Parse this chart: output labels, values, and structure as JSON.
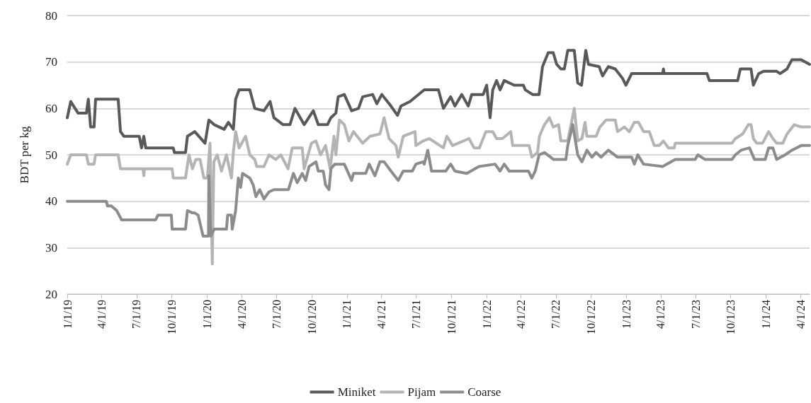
{
  "chart_data": {
    "type": "line",
    "ylabel": "BDT per kg",
    "xlim": [
      "2019-01-01",
      "2024-04-24"
    ],
    "xticks": [
      {
        "value": "2019-01-01",
        "label": "1/1/19"
      },
      {
        "value": "2019-04-01",
        "label": "4/1/19"
      },
      {
        "value": "2019-07-01",
        "label": "7/1/19"
      },
      {
        "value": "2019-10-01",
        "label": "10/1/19"
      },
      {
        "value": "2020-01-01",
        "label": "1/1/20"
      },
      {
        "value": "2020-04-01",
        "label": "4/1/20"
      },
      {
        "value": "2020-07-01",
        "label": "7/1/20"
      },
      {
        "value": "2020-10-01",
        "label": "10/1/20"
      },
      {
        "value": "2021-01-01",
        "label": "1/1/21"
      },
      {
        "value": "2021-04-01",
        "label": "4/1/21"
      },
      {
        "value": "2021-07-01",
        "label": "7/1/21"
      },
      {
        "value": "2021-10-01",
        "label": "10/1/21"
      },
      {
        "value": "2022-01-01",
        "label": "1/1/22"
      },
      {
        "value": "2022-04-01",
        "label": "4/1/22"
      },
      {
        "value": "2022-07-01",
        "label": "7/1/22"
      },
      {
        "value": "2022-10-01",
        "label": "10/1/22"
      },
      {
        "value": "2023-01-01",
        "label": "1/1/23"
      },
      {
        "value": "2023-04-01",
        "label": "4/1/23"
      },
      {
        "value": "2023-07-01",
        "label": "7/1/23"
      },
      {
        "value": "2023-10-01",
        "label": "10/1/23"
      },
      {
        "value": "2024-01-01",
        "label": "1/1/24"
      },
      {
        "value": "2024-04-01",
        "label": "4/1/24"
      }
    ],
    "ylim": [
      20,
      80
    ],
    "yticks": [
      20,
      30,
      40,
      50,
      60,
      70,
      80
    ],
    "grid": "y",
    "legend": "bottom",
    "marker": "none",
    "series": [
      {
        "name": "Miniket",
        "color": "#595959",
        "x": [
          "2019-01-01",
          "2019-01-10",
          "2019-01-29",
          "2019-02-20",
          "2019-02-25",
          "2019-03-03",
          "2019-03-12",
          "2019-03-16",
          "2019-05-14",
          "2019-05-20",
          "2019-05-29",
          "2019-07-08",
          "2019-07-14",
          "2019-07-20",
          "2019-07-25",
          "2019-10-05",
          "2019-10-08",
          "2019-11-06",
          "2019-11-11",
          "2019-11-30",
          "2019-12-27",
          "2020-01-06",
          "2020-01-20",
          "2020-02-15",
          "2020-02-26",
          "2020-03-10",
          "2020-03-16",
          "2020-03-25",
          "2020-04-22",
          "2020-05-05",
          "2020-05-29",
          "2020-06-14",
          "2020-06-24",
          "2020-07-18",
          "2020-08-05",
          "2020-08-18",
          "2020-09-11",
          "2020-10-05",
          "2020-10-18",
          "2020-11-11",
          "2020-11-20",
          "2020-12-03",
          "2020-12-09",
          "2020-12-25",
          "2021-01-13",
          "2021-01-31",
          "2021-02-11",
          "2021-03-09",
          "2021-03-20",
          "2021-04-02",
          "2021-04-26",
          "2021-05-13",
          "2021-05-22",
          "2021-06-15",
          "2021-07-22",
          "2021-08-28",
          "2021-09-10",
          "2021-09-29",
          "2021-10-10",
          "2021-10-28",
          "2021-11-14",
          "2021-11-23",
          "2021-12-23",
          "2022-01-01",
          "2022-01-10",
          "2022-01-17",
          "2022-01-27",
          "2022-02-05",
          "2022-02-16",
          "2022-03-14",
          "2022-04-07",
          "2022-04-12",
          "2022-05-01",
          "2022-05-18",
          "2022-05-27",
          "2022-06-11",
          "2022-06-24",
          "2022-07-03",
          "2022-07-14",
          "2022-07-23",
          "2022-08-01",
          "2022-08-18",
          "2022-08-27",
          "2022-09-06",
          "2022-09-17",
          "2022-09-24",
          "2022-10-22",
          "2022-10-31",
          "2022-11-15",
          "2022-12-03",
          "2022-12-22",
          "2022-12-31",
          "2023-01-15",
          "2023-04-06",
          "2023-04-08",
          "2023-04-10",
          "2023-07-31",
          "2023-08-06",
          "2023-10-19",
          "2023-10-26",
          "2023-11-23",
          "2023-11-29",
          "2023-12-13",
          "2023-12-26",
          "2024-01-29",
          "2024-02-07",
          "2024-02-25",
          "2024-03-09",
          "2024-04-02",
          "2024-04-24"
        ],
        "values": [
          58,
          61.5,
          59,
          59,
          62,
          56,
          56,
          62,
          62,
          55,
          54,
          54,
          51.5,
          54,
          51.5,
          51.5,
          50.5,
          50.5,
          54,
          55,
          52.5,
          57.5,
          56.5,
          55.5,
          57,
          55.5,
          62,
          64,
          64,
          60,
          59.5,
          61.5,
          58,
          56.5,
          56.5,
          60,
          56.5,
          59.5,
          56.5,
          56.5,
          58,
          59,
          62.5,
          63,
          59.5,
          60,
          62.5,
          63,
          61,
          63,
          60.5,
          58.5,
          60.5,
          61.5,
          64,
          64,
          60,
          62.5,
          60.5,
          63,
          60.5,
          63,
          63,
          65,
          58,
          64,
          66,
          64,
          66,
          65,
          65,
          64,
          63,
          63,
          69,
          72,
          72,
          69.5,
          68.5,
          68.5,
          72.5,
          72.5,
          65.5,
          65,
          72.5,
          69.5,
          69,
          67,
          69,
          68.5,
          66.5,
          65,
          67.5,
          67.5,
          68.5,
          67.5,
          67.5,
          66,
          66,
          68.5,
          68.5,
          65,
          67.5,
          68,
          68,
          67.5,
          68.5,
          70.5,
          70.5,
          69.5
        ]
      },
      {
        "name": "Pijam",
        "color": "#b4b4b4",
        "x": [
          "2019-01-01",
          "2019-01-10",
          "2019-02-20",
          "2019-02-25",
          "2019-03-12",
          "2019-03-16",
          "2019-05-14",
          "2019-05-20",
          "2019-07-18",
          "2019-07-20",
          "2019-07-22",
          "2019-10-02",
          "2019-10-05",
          "2019-11-06",
          "2019-11-15",
          "2019-11-24",
          "2019-12-03",
          "2019-12-14",
          "2019-12-24",
          "2020-01-02",
          "2020-01-09",
          "2020-01-15",
          "2020-01-19",
          "2020-01-28",
          "2020-02-08",
          "2020-02-21",
          "2020-03-05",
          "2020-03-10",
          "2020-03-16",
          "2020-03-25",
          "2020-04-11",
          "2020-04-22",
          "2020-05-05",
          "2020-05-10",
          "2020-05-29",
          "2020-06-11",
          "2020-06-29",
          "2020-07-12",
          "2020-07-31",
          "2020-08-11",
          "2020-09-06",
          "2020-09-11",
          "2020-09-30",
          "2020-10-12",
          "2020-10-24",
          "2020-11-06",
          "2020-11-18",
          "2020-11-28",
          "2020-12-03",
          "2020-12-12",
          "2020-12-25",
          "2021-01-06",
          "2021-01-18",
          "2021-02-11",
          "2021-03-02",
          "2021-03-28",
          "2021-04-08",
          "2021-04-21",
          "2021-05-09",
          "2021-05-15",
          "2021-05-28",
          "2021-06-28",
          "2021-06-30",
          "2021-07-19",
          "2021-08-04",
          "2021-09-10",
          "2021-09-19",
          "2021-10-04",
          "2021-11-16",
          "2021-11-29",
          "2021-12-13",
          "2021-12-30",
          "2022-01-17",
          "2022-01-27",
          "2022-02-11",
          "2022-03-05",
          "2022-03-10",
          "2022-04-22",
          "2022-04-29",
          "2022-05-14",
          "2022-05-19",
          "2022-06-01",
          "2022-06-14",
          "2022-06-24",
          "2022-07-08",
          "2022-07-14",
          "2022-08-01",
          "2022-08-18",
          "2022-08-27",
          "2022-09-07",
          "2022-09-15",
          "2022-09-20",
          "2022-10-14",
          "2022-10-24",
          "2022-11-09",
          "2022-12-03",
          "2022-12-09",
          "2022-12-27",
          "2023-01-09",
          "2023-01-22",
          "2023-02-02",
          "2023-02-15",
          "2023-03-02",
          "2023-03-15",
          "2023-03-28",
          "2023-04-08",
          "2023-04-21",
          "2023-05-06",
          "2023-05-09",
          "2023-10-04",
          "2023-10-13",
          "2023-11-01",
          "2023-11-16",
          "2023-11-23",
          "2023-11-29",
          "2023-12-08",
          "2023-12-23",
          "2024-01-08",
          "2024-01-19",
          "2024-01-29",
          "2024-02-14",
          "2024-02-25",
          "2024-03-15",
          "2024-04-02",
          "2024-04-24"
        ],
        "values": [
          48,
          50,
          50,
          48,
          48,
          50,
          50,
          47,
          47,
          45.5,
          47,
          47,
          45,
          45,
          50,
          47,
          49,
          49,
          45,
          45,
          52.5,
          26.5,
          48.5,
          50,
          46.5,
          50,
          45,
          50.5,
          55,
          51.5,
          54,
          50,
          49,
          47.5,
          47.5,
          50,
          49,
          50,
          47,
          51.5,
          51.5,
          47,
          52.5,
          53,
          50,
          52,
          47,
          54,
          50,
          57.5,
          56.5,
          53,
          55,
          52.5,
          54,
          54.5,
          58,
          53.5,
          52,
          49.5,
          54,
          55,
          52,
          53,
          53.5,
          51.5,
          54,
          52,
          53.5,
          51.5,
          51.5,
          55,
          55,
          53.5,
          53.5,
          55,
          52,
          52,
          49.5,
          50.5,
          54,
          56.5,
          58,
          56,
          56.5,
          53,
          53,
          60,
          53,
          53.5,
          57,
          54,
          54,
          56,
          57.5,
          57.5,
          55,
          56,
          55,
          57,
          57,
          55,
          55,
          52,
          52,
          53,
          51.5,
          51.5,
          52.5,
          52.5,
          53.5,
          54.5,
          56.5,
          56.5,
          53.5,
          52.5,
          52.5,
          55,
          53.5,
          52.5,
          52.5,
          54.5,
          56.5,
          56,
          56
        ]
      },
      {
        "name": "Coarse",
        "color": "#8c8c8c",
        "x": [
          "2019-01-01",
          "2019-04-13",
          "2019-04-16",
          "2019-04-26",
          "2019-05-10",
          "2019-05-23",
          "2019-08-20",
          "2019-08-26",
          "2019-09-30",
          "2019-10-02",
          "2019-11-06",
          "2019-11-11",
          "2019-11-24",
          "2019-11-30",
          "2019-12-09",
          "2019-12-22",
          "2020-01-05",
          "2020-01-06",
          "2020-01-11",
          "2020-01-20",
          "2020-02-21",
          "2020-02-24",
          "2020-03-05",
          "2020-03-07",
          "2020-03-16",
          "2020-03-23",
          "2020-03-29",
          "2020-04-03",
          "2020-04-22",
          "2020-05-01",
          "2020-05-08",
          "2020-05-18",
          "2020-05-29",
          "2020-06-11",
          "2020-06-24",
          "2020-08-01",
          "2020-08-14",
          "2020-08-24",
          "2020-09-06",
          "2020-09-15",
          "2020-09-24",
          "2020-10-12",
          "2020-10-18",
          "2020-10-31",
          "2020-11-06",
          "2020-11-15",
          "2020-11-20",
          "2020-11-30",
          "2020-12-25",
          "2021-01-13",
          "2021-01-18",
          "2021-02-19",
          "2021-02-28",
          "2021-03-15",
          "2021-03-28",
          "2021-04-08",
          "2021-04-26",
          "2021-05-15",
          "2021-05-28",
          "2021-06-21",
          "2021-06-30",
          "2021-07-19",
          "2021-07-22",
          "2021-07-31",
          "2021-08-10",
          "2021-09-16",
          "2021-09-29",
          "2021-10-10",
          "2021-11-10",
          "2021-12-12",
          "2022-01-23",
          "2022-02-05",
          "2022-02-16",
          "2022-03-01",
          "2022-04-20",
          "2022-04-29",
          "2022-05-08",
          "2022-05-18",
          "2022-06-01",
          "2022-06-25",
          "2022-07-27",
          "2022-08-01",
          "2022-08-14",
          "2022-08-27",
          "2022-09-07",
          "2022-09-20",
          "2022-10-03",
          "2022-10-14",
          "2022-10-27",
          "2022-11-15",
          "2022-12-09",
          "2023-01-15",
          "2023-01-22",
          "2023-01-31",
          "2023-02-15",
          "2023-04-06",
          "2023-05-09",
          "2023-06-30",
          "2023-07-07",
          "2023-07-26",
          "2023-10-04",
          "2023-10-13",
          "2023-10-28",
          "2023-11-19",
          "2023-12-02",
          "2023-12-30",
          "2024-01-08",
          "2024-01-19",
          "2024-01-29",
          "2024-02-20",
          "2024-03-09",
          "2024-04-02",
          "2024-04-24"
        ],
        "values": [
          40,
          40,
          39,
          39,
          38,
          36,
          36,
          37,
          37,
          34,
          34,
          38,
          37.5,
          37.5,
          37,
          32.5,
          32.5,
          45.5,
          32.5,
          34,
          34,
          37,
          37,
          34,
          38,
          45,
          43,
          46,
          45,
          43.5,
          41,
          42.5,
          40.5,
          42,
          42.5,
          42.5,
          46,
          44,
          46,
          44.5,
          47.5,
          48.5,
          46.5,
          46.5,
          43.5,
          42.5,
          47,
          48,
          48,
          44.5,
          46,
          46,
          48,
          45.5,
          48.5,
          48.5,
          46.5,
          44.5,
          46.5,
          46.5,
          48,
          48.5,
          48,
          51,
          46.5,
          46.5,
          48,
          46.5,
          46,
          47.5,
          48,
          46.5,
          48,
          46.5,
          46.5,
          45,
          46.5,
          50,
          50.5,
          49,
          49,
          52,
          56.5,
          50,
          48.5,
          51,
          49.5,
          50.5,
          49.5,
          51,
          49.5,
          49.5,
          48,
          50,
          48,
          47.5,
          49,
          49,
          50,
          49,
          49,
          50,
          51,
          51.5,
          49,
          49,
          51.5,
          51.5,
          49,
          50,
          51,
          52,
          52
        ]
      }
    ]
  }
}
